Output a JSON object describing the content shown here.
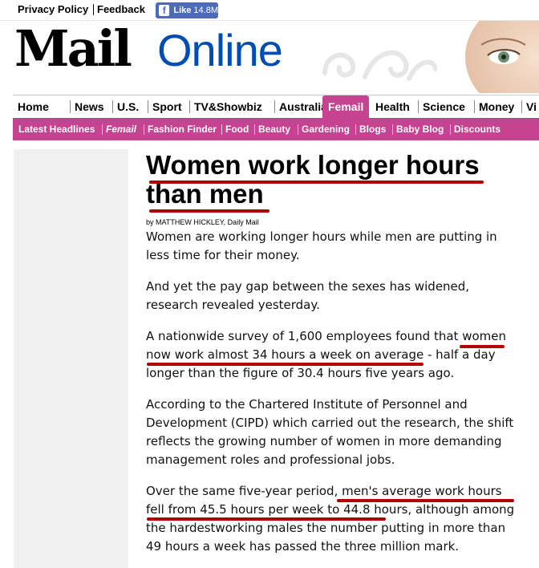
{
  "topbar": {
    "privacy_label": "Privacy Policy",
    "feedback_label": "Feedback",
    "fb_like_label": "Like",
    "fb_like_count": "14.8M"
  },
  "masthead": {
    "logo_mail": "Mail",
    "logo_online": "Online"
  },
  "nav": {
    "tabs": [
      {
        "label": "Home"
      },
      {
        "label": "News"
      },
      {
        "label": "U.S."
      },
      {
        "label": "Sport"
      },
      {
        "label": "TV&Showbiz"
      },
      {
        "label": "Australia"
      },
      {
        "label": "Femail",
        "active": true
      },
      {
        "label": "Health"
      },
      {
        "label": "Science"
      },
      {
        "label": "Money"
      },
      {
        "label": "Vi"
      }
    ]
  },
  "subnav": {
    "items": [
      {
        "label": "Latest Headlines"
      },
      {
        "label": "Femail",
        "active": true
      },
      {
        "label": "Fashion Finder"
      },
      {
        "label": "Food"
      },
      {
        "label": "Beauty"
      },
      {
        "label": "Gardening"
      },
      {
        "label": "Blogs"
      },
      {
        "label": "Baby Blog"
      },
      {
        "label": "Discounts"
      }
    ]
  },
  "article": {
    "headline_line1": "Women work longer hours",
    "headline_line2": "than men",
    "byline": "by MATTHEW HICKLEY, Daily Mail",
    "paragraphs": [
      "Women are working longer hours while men are putting in less time for their money.",
      "And yet the pay gap between the sexes has widened, research revealed yesterday.",
      "A nationwide survey of 1,600 employees found that women now work almost 34 hours a week on average - half a day longer than the figure of 30.4 hours five years ago.",
      "According to the Chartered Institute of Personnel and Development (CIPD) which carried out the research, the shift reflects the growing number of women in more demanding management roles and professional jobs.",
      "Over the same five-year period, men's average work hours fell from 45.5 hours per week to 44.8 hours, although among the hardestworking males the number putting in more than 49 hours a week has passed the three million mark."
    ]
  },
  "colors": {
    "brand_blue": "#004db3",
    "femail_pink": "#c64391",
    "facebook_blue": "#4c69ba",
    "annotation_red": "#b40000"
  }
}
